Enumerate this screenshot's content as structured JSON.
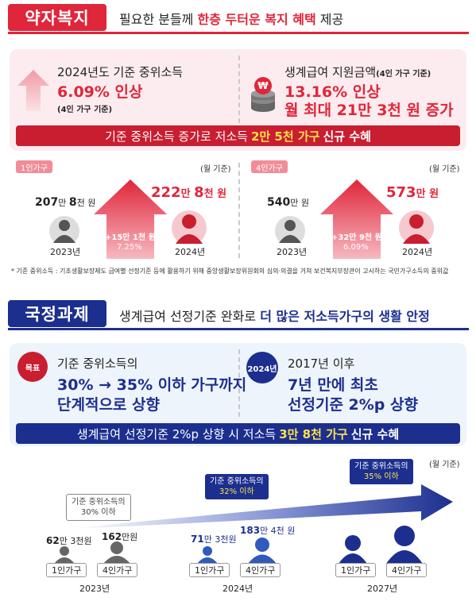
{
  "section1": {
    "tag": "약자복지",
    "title_pre": "필요한 분들께 ",
    "title_emph": "한층 두터운 복지 혜택",
    "title_post": " 제공",
    "left": {
      "line1": "2024년도 기준 중위소득",
      "line2": "6.09% 인상",
      "line3": "(4인 가구 기준)"
    },
    "right": {
      "line1": "생계급여 지원금액",
      "line1_note": "(4인 가구 기준)",
      "line2": "13.16% 인상",
      "line3": "월 최대 21만 3천 원 증가"
    },
    "banner_pre": "기준 중위소득 증가로 저소득",
    "banner_emph": "2만 5천 가구",
    "banner_post": "신규 수혜",
    "one_person": {
      "tag": "1인가구",
      "unit": "(월 기준)",
      "before_num": "207",
      "before_man": "만 ",
      "before_rest": "8",
      "before_unit": "천 원",
      "after_num": "222",
      "after_man": "만 ",
      "after_rest": "8",
      "after_unit": "천 원",
      "increase": "+15만 1천 원",
      "percent": "7.25%",
      "year_before": "2023년",
      "year_after": "2024년"
    },
    "four_person": {
      "tag": "4인가구",
      "unit": "(월 기준)",
      "before_num": "540",
      "before_unit": "만 원",
      "after_num": "573",
      "after_unit": "만 원",
      "increase": "+32만 9천 원",
      "percent": "6.09%",
      "year_before": "2023년",
      "year_after": "2024년"
    },
    "footnote": "* 기준 중위소득 : 기초생활보장제도 급여별 선정기준 등에 활용하기 위해 중앙생활보장위원회의 심의·의결을 거쳐 보건복지부장관이 고시하는 국민가구소득의 중위값"
  },
  "section2": {
    "tag": "국정과제",
    "title_pre": "생계급여 선정기준 완화로 ",
    "title_emph": "더 많은 저소득가구의 생활 안정",
    "goal_badge": "목표",
    "left": {
      "line1": "기준 중위소득의",
      "line2": "30% → 35% 이하 가구까지",
      "line3": "단계적으로 상향"
    },
    "year_badge": "2024년",
    "right": {
      "line1": "2017년 이후",
      "line2": "7년 만에 최초",
      "line3": "선정기준 2%p 상향"
    },
    "banner_pre": "생계급여 선정기준 2%p 상향 시 저소득",
    "banner_emph": "3만 8천 가구",
    "banner_post": "신규 수혜",
    "unit": "(월 기준)",
    "timeline": [
      {
        "callout_l1": "기준 중위소득의",
        "callout_l2": "30% 이하",
        "amount1_num": "62",
        "amount1_rest": "만 3천원",
        "amount2_num": "162",
        "amount2_rest": "만원",
        "label1": "1인가구",
        "label2": "4인가구",
        "year": "2023년"
      },
      {
        "callout_l1": "기준 중위소득의",
        "callout_l2": "32% 이하",
        "amount1_num": "71",
        "amount1_rest": "만 3천원",
        "amount2_num": "183",
        "amount2_rest": "만 4천 원",
        "label1": "1인가구",
        "label2": "4인가구",
        "year": "2024년"
      },
      {
        "callout_l1": "기준 중위소득의",
        "callout_l2": "35% 이하",
        "label1": "1인가구",
        "label2": "4인가구",
        "year": "2027년"
      }
    ]
  },
  "colors": {
    "red": "#e0263a",
    "navy": "#1c2f8f",
    "pink_bg": "#fdecef",
    "blue_bg": "#eef4fb",
    "yellow": "#ffe14d"
  }
}
